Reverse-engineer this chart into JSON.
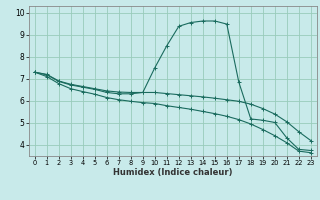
{
  "xlabel": "Humidex (Indice chaleur)",
  "xlim": [
    -0.5,
    23.5
  ],
  "ylim": [
    3.5,
    10.3
  ],
  "yticks": [
    4,
    5,
    6,
    7,
    8,
    9,
    10
  ],
  "xticks": [
    0,
    1,
    2,
    3,
    4,
    5,
    6,
    7,
    8,
    9,
    10,
    11,
    12,
    13,
    14,
    15,
    16,
    17,
    18,
    19,
    20,
    21,
    22,
    23
  ],
  "bg_color": "#c8eaea",
  "grid_color": "#99ccbb",
  "line_color": "#1a6b5e",
  "line1_y": [
    7.3,
    7.2,
    6.9,
    6.75,
    6.65,
    6.55,
    6.45,
    6.4,
    6.38,
    6.38,
    6.38,
    6.33,
    6.28,
    6.23,
    6.18,
    6.12,
    6.05,
    5.98,
    5.85,
    5.65,
    5.4,
    5.05,
    4.6,
    4.2
  ],
  "line2_y": [
    7.3,
    7.18,
    6.88,
    6.72,
    6.62,
    6.52,
    6.38,
    6.32,
    6.32,
    6.38,
    7.5,
    8.5,
    9.38,
    9.55,
    9.62,
    9.62,
    9.48,
    6.85,
    5.18,
    5.12,
    5.02,
    4.32,
    3.8,
    3.75
  ],
  "line3_y": [
    7.3,
    7.1,
    6.78,
    6.55,
    6.42,
    6.3,
    6.15,
    6.05,
    5.98,
    5.92,
    5.88,
    5.78,
    5.7,
    5.62,
    5.52,
    5.42,
    5.3,
    5.15,
    4.95,
    4.7,
    4.42,
    4.1,
    3.72,
    3.65
  ]
}
